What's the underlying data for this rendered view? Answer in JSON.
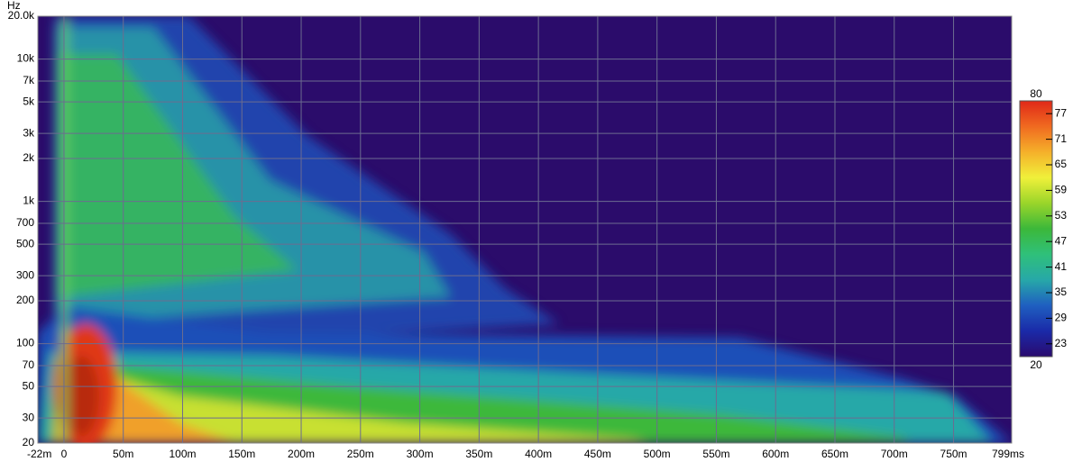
{
  "chart_data": {
    "type": "spectrogram",
    "y_label": "Hz",
    "xlim": [
      -22,
      799
    ],
    "ylim": [
      20,
      20000
    ],
    "log_y": true,
    "grid": true,
    "xticks": [
      {
        "value": -22,
        "label": "-22m"
      },
      0,
      {
        "value": 50,
        "label": "50m"
      },
      {
        "value": 100,
        "label": "100m"
      },
      {
        "value": 150,
        "label": "150m"
      },
      {
        "value": 200,
        "label": "200m"
      },
      {
        "value": 250,
        "label": "250m"
      },
      {
        "value": 300,
        "label": "300m"
      },
      {
        "value": 350,
        "label": "350m"
      },
      {
        "value": 400,
        "label": "400m"
      },
      {
        "value": 450,
        "label": "450m"
      },
      {
        "value": 500,
        "label": "500m"
      },
      {
        "value": 550,
        "label": "550m"
      },
      {
        "value": 600,
        "label": "600m"
      },
      {
        "value": 650,
        "label": "650m"
      },
      {
        "value": 700,
        "label": "700m"
      },
      {
        "value": 750,
        "label": "750m"
      },
      {
        "value": 799,
        "label": "799ms"
      }
    ],
    "yticks": [
      20,
      30,
      50,
      70,
      100,
      200,
      300,
      500,
      700,
      {
        "value": 1000,
        "label": "1k"
      },
      {
        "value": 2000,
        "label": "2k"
      },
      {
        "value": 3000,
        "label": "3k"
      },
      {
        "value": 5000,
        "label": "5k"
      },
      {
        "value": 7000,
        "label": "7k"
      },
      {
        "value": 10000,
        "label": "10k"
      },
      {
        "value": 20000,
        "label": "20.0k"
      }
    ],
    "colorbar": {
      "lim": [
        20,
        80
      ],
      "ticks": [
        20,
        23,
        29,
        35,
        41,
        47,
        53,
        59,
        65,
        71,
        77,
        80
      ],
      "colors": [
        "#2a0a6e",
        "#1a2aa8",
        "#1f5fc0",
        "#27a8a8",
        "#2fc07a",
        "#3cb83a",
        "#9ad52a",
        "#f0f03a",
        "#f5b02a",
        "#f06a20",
        "#e02818"
      ]
    }
  }
}
